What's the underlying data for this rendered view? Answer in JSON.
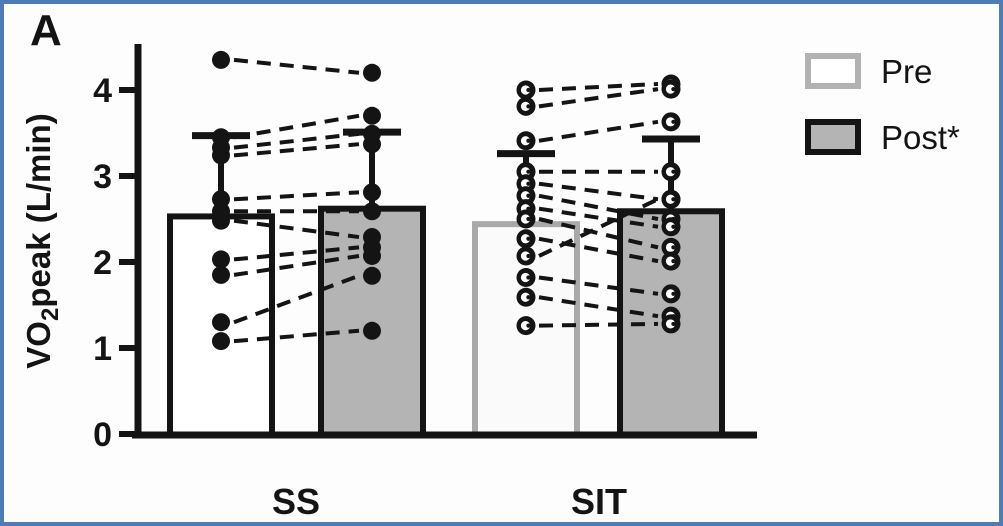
{
  "panel_label": "A",
  "colors": {
    "frame_blue": "#4f7cb5",
    "ink": "#141414",
    "post_gray_fill": "#b4b4b4",
    "sit_pre_fill": "#fafafa",
    "sit_pre_border": "#a9a9a9",
    "background": "#fdfdfd"
  },
  "chart_data": {
    "type": "bar",
    "title": "",
    "xlabel": "",
    "ylabel": "VO2peak (L/min)",
    "ylabel_parts": [
      "VO",
      "2",
      "peak (L/min)"
    ],
    "ylim": [
      0,
      4.5
    ],
    "y_ticks": [
      0,
      1,
      2,
      3,
      4
    ],
    "grid": "off",
    "legend_position": "top-right",
    "categories": [
      "SS",
      "SIT"
    ],
    "legend": [
      {
        "label": "Pre",
        "fill": "#ffffff",
        "border": "#b2b2b2"
      },
      {
        "label": "Post*",
        "fill": "#b4b4b4",
        "border": "#141414"
      }
    ],
    "bars": [
      {
        "group": "SS",
        "condition": "Pre",
        "mean": 2.53,
        "sd_top": 3.47,
        "fill": "#ffffff",
        "border": "#141414"
      },
      {
        "group": "SS",
        "condition": "Post",
        "mean": 2.62,
        "sd_top": 3.51,
        "fill": "#b4b4b4",
        "border": "#141414"
      },
      {
        "group": "SIT",
        "condition": "Pre",
        "mean": 2.44,
        "sd_top": 3.26,
        "fill": "#fafafa",
        "border": "#a9a9a9"
      },
      {
        "group": "SIT",
        "condition": "Post",
        "mean": 2.59,
        "sd_top": 3.43,
        "fill": "#b4b4b4",
        "border": "#141414"
      }
    ],
    "paired_points": [
      {
        "group": "SS",
        "marker": "filled-circle",
        "pairs": [
          [
            4.35,
            4.2
          ],
          [
            3.45,
            3.7
          ],
          [
            3.33,
            3.49
          ],
          [
            3.24,
            3.37
          ],
          [
            2.73,
            2.81
          ],
          [
            2.59,
            2.59
          ],
          [
            2.48,
            2.29
          ],
          [
            2.03,
            2.17
          ],
          [
            1.85,
            2.07
          ],
          [
            1.3,
            1.84
          ],
          [
            1.08,
            1.2
          ]
        ]
      },
      {
        "group": "SIT",
        "marker": "open-circle",
        "pairs": [
          [
            4.0,
            4.07
          ],
          [
            3.81,
            4.01
          ],
          [
            3.41,
            3.63
          ],
          [
            3.05,
            3.05
          ],
          [
            2.91,
            2.73
          ],
          [
            2.77,
            2.5
          ],
          [
            2.62,
            2.41
          ],
          [
            2.5,
            2.17
          ],
          [
            2.27,
            2.01
          ],
          [
            2.07,
            2.73
          ],
          [
            1.82,
            1.63
          ],
          [
            1.59,
            1.37
          ],
          [
            1.26,
            1.28
          ]
        ]
      }
    ]
  }
}
